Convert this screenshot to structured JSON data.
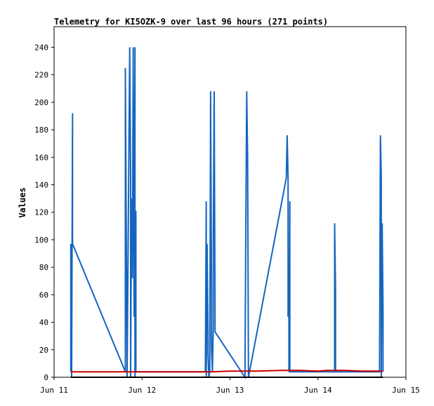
{
  "chart_data": {
    "type": "line",
    "title": "Telemetry for KI5OZK-9 over last 96 hours (271 points)",
    "xlabel": "",
    "ylabel": "Values",
    "ylim": [
      0,
      255
    ],
    "yticks": [
      0,
      20,
      40,
      60,
      80,
      100,
      120,
      140,
      160,
      180,
      200,
      220,
      240
    ],
    "xlim": [
      0,
      4
    ],
    "xticks": [
      {
        "value": 0,
        "label": "Jun 11"
      },
      {
        "value": 1,
        "label": "Jun 12"
      },
      {
        "value": 2,
        "label": "Jun 13"
      },
      {
        "value": 3,
        "label": "Jun 14"
      },
      {
        "value": 4,
        "label": "Jun 15"
      }
    ],
    "grid": false,
    "series": [
      {
        "color": "#1565c0",
        "points": [
          [
            0.19,
            4
          ],
          [
            0.19,
            97
          ],
          [
            0.2,
            0
          ],
          [
            0.21,
            192
          ],
          [
            0.21,
            97
          ],
          [
            0.81,
            4
          ],
          [
            0.81,
            225
          ],
          [
            0.83,
            0
          ],
          [
            0.86,
            240
          ],
          [
            0.87,
            145
          ],
          [
            0.87,
            0
          ],
          [
            0.88,
            130
          ],
          [
            0.88,
            101
          ],
          [
            0.89,
            72
          ],
          [
            0.9,
            240
          ],
          [
            0.9,
            225
          ],
          [
            0.91,
            44
          ],
          [
            0.92,
            240
          ],
          [
            0.92,
            0
          ],
          [
            0.93,
            121
          ],
          [
            0.93,
            4
          ],
          [
            1.72,
            4
          ],
          [
            1.73,
            128
          ],
          [
            1.73,
            0
          ],
          [
            1.74,
            97
          ],
          [
            1.75,
            33
          ],
          [
            1.75,
            17
          ],
          [
            1.76,
            0
          ],
          [
            1.77,
            4
          ],
          [
            1.78,
            208
          ],
          [
            1.79,
            64
          ],
          [
            1.79,
            20
          ],
          [
            1.8,
            4
          ],
          [
            1.81,
            37
          ],
          [
            1.81,
            97
          ],
          [
            1.82,
            208
          ],
          [
            1.83,
            48
          ],
          [
            1.83,
            33
          ],
          [
            2.17,
            0
          ],
          [
            2.18,
            104
          ],
          [
            2.19,
            208
          ],
          [
            2.2,
            160
          ],
          [
            2.21,
            0
          ],
          [
            2.64,
            145
          ],
          [
            2.65,
            176
          ],
          [
            2.66,
            145
          ],
          [
            2.66,
            44
          ],
          [
            2.67,
            64
          ],
          [
            2.67,
            4
          ],
          [
            2.68,
            128
          ],
          [
            2.68,
            4
          ],
          [
            3.19,
            4
          ],
          [
            3.19,
            112
          ],
          [
            3.2,
            64
          ],
          [
            3.2,
            4
          ],
          [
            3.7,
            4
          ],
          [
            3.71,
            176
          ],
          [
            3.72,
            145
          ],
          [
            3.72,
            0
          ],
          [
            3.73,
            112
          ],
          [
            3.74,
            49
          ],
          [
            3.74,
            4
          ]
        ]
      },
      {
        "color": "#cc0000",
        "points": [
          [
            0.19,
            4
          ],
          [
            0.5,
            4
          ],
          [
            1.0,
            4
          ],
          [
            1.5,
            4
          ],
          [
            1.8,
            4
          ],
          [
            2.0,
            4.5
          ],
          [
            2.3,
            4.5
          ],
          [
            2.6,
            5
          ],
          [
            2.8,
            5
          ],
          [
            3.0,
            4.5
          ],
          [
            3.1,
            5
          ],
          [
            3.3,
            5
          ],
          [
            3.5,
            4.5
          ],
          [
            3.74,
            4.5
          ]
        ]
      },
      {
        "color": "#000000",
        "points": [
          [
            0.19,
            0
          ],
          [
            3.74,
            0
          ]
        ]
      }
    ]
  }
}
